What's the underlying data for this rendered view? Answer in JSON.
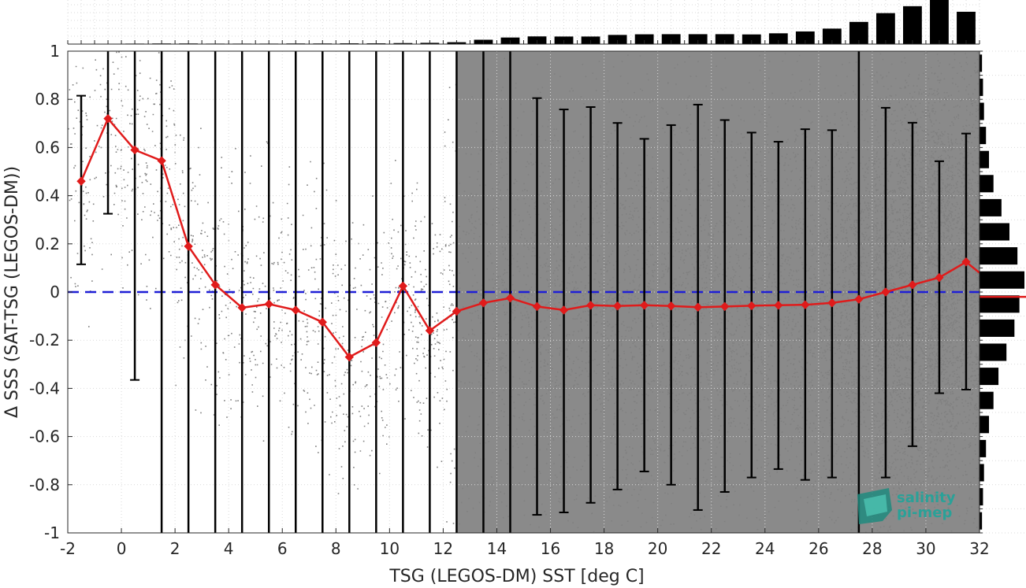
{
  "chart_data": {
    "type": "scatter",
    "xlabel": "TSG (LEGOS-DM) SST [deg C]",
    "ylabel": "Δ SSS (SAT-TSG (LEGOS-DM))",
    "xlim": [
      -2,
      32
    ],
    "ylim": [
      -1,
      1
    ],
    "x_ticks": [
      "-2",
      "0",
      "2",
      "4",
      "6",
      "8",
      "10",
      "12",
      "14",
      "16",
      "18",
      "20",
      "22",
      "24",
      "26",
      "28",
      "30",
      "32"
    ],
    "y_ticks": [
      "-1",
      "-0.8",
      "-0.6",
      "-0.4",
      "-0.2",
      "0",
      "0.2",
      "0.4",
      "0.6",
      "0.8",
      "1"
    ],
    "grid": true,
    "reference_line": {
      "y": 0,
      "color": "#1f1fd6",
      "style": "dashed"
    },
    "mean_series": {
      "color": "#e01b1b",
      "x": [
        -1.5,
        -0.5,
        0.5,
        1.5,
        2.5,
        3.5,
        4.5,
        5.5,
        6.5,
        7.5,
        8.5,
        9.5,
        10.5,
        11.5,
        12.5,
        13.5,
        14.5,
        15.5,
        16.5,
        17.5,
        18.5,
        19.5,
        20.5,
        21.5,
        22.5,
        23.5,
        24.5,
        25.5,
        26.5,
        27.5,
        28.5,
        29.5,
        30.5,
        31.5,
        32
      ],
      "mean": [
        0.46,
        0.72,
        0.59,
        0.545,
        0.19,
        0.03,
        -0.065,
        -0.05,
        -0.075,
        -0.125,
        -0.27,
        -0.21,
        0.025,
        -0.16,
        -0.08,
        -0.045,
        -0.025,
        -0.06,
        -0.075,
        -0.055,
        -0.058,
        -0.055,
        -0.058,
        -0.063,
        -0.06,
        -0.057,
        -0.055,
        -0.053,
        -0.045,
        -0.03,
        0.0,
        0.03,
        0.06,
        0.125,
        0.08
      ],
      "lower": [
        0.115,
        0.325,
        -0.365,
        -1,
        -1,
        -1,
        -1,
        -1,
        -1,
        -1,
        -1,
        -1,
        -1,
        -1,
        -1,
        -1,
        -1,
        -0.925,
        -0.915,
        -0.875,
        -0.82,
        -0.745,
        -0.8,
        -0.905,
        -0.83,
        -0.77,
        -0.735,
        -0.78,
        -0.77,
        -1,
        -0.77,
        -0.64,
        -0.42,
        -0.405,
        null
      ],
      "upper": [
        0.815,
        1,
        1,
        1,
        1,
        1,
        1,
        1,
        1,
        1,
        1,
        1,
        1,
        1,
        1,
        1,
        1,
        0.805,
        0.758,
        0.768,
        0.702,
        0.636,
        0.693,
        0.778,
        0.714,
        0.662,
        0.624,
        0.676,
        0.672,
        1,
        0.765,
        0.703,
        0.543,
        0.658,
        null
      ]
    },
    "top_histogram": {
      "bin_centers": [
        -1.5,
        -0.5,
        0.5,
        1.5,
        2.5,
        3.5,
        4.5,
        5.5,
        6.5,
        7.5,
        8.5,
        9.5,
        10.5,
        11.5,
        12.5,
        13.5,
        14.5,
        15.5,
        16.5,
        17.5,
        18.5,
        19.5,
        20.5,
        21.5,
        22.5,
        23.5,
        24.5,
        25.5,
        26.5,
        27.5,
        28.5,
        29.5,
        30.5,
        31.5
      ],
      "counts": [
        0.2,
        0.3,
        0.4,
        0.5,
        0.5,
        0.4,
        0.4,
        0.4,
        0.5,
        0.5,
        0.6,
        0.6,
        0.8,
        1.0,
        1.5,
        3.5,
        5.3,
        6.2,
        6.1,
        6.1,
        7.4,
        7.9,
        8.0,
        8.0,
        8.0,
        7.8,
        8.7,
        10.2,
        12.5,
        17.9,
        25.0,
        30.6,
        35.6,
        26.1
      ]
    },
    "right_histogram": {
      "bin_centers": [
        -0.95,
        -0.85,
        -0.75,
        -0.65,
        -0.55,
        -0.45,
        -0.35,
        -0.25,
        -0.15,
        -0.05,
        0.05,
        0.15,
        0.25,
        0.35,
        0.45,
        0.55,
        0.65,
        0.75,
        0.85,
        0.95
      ],
      "counts": [
        2.5,
        3.5,
        4.5,
        6.5,
        9.5,
        14,
        19,
        27,
        35,
        40,
        45,
        38,
        30,
        22,
        14,
        9.5,
        6.5,
        4.5,
        3.5,
        2.5
      ],
      "median_marker": {
        "y": -0.02,
        "color": "#e01b1b"
      }
    },
    "scatter_color": "#808080"
  },
  "logo": {
    "line1": "salinity",
    "line2": "pi-mep"
  }
}
